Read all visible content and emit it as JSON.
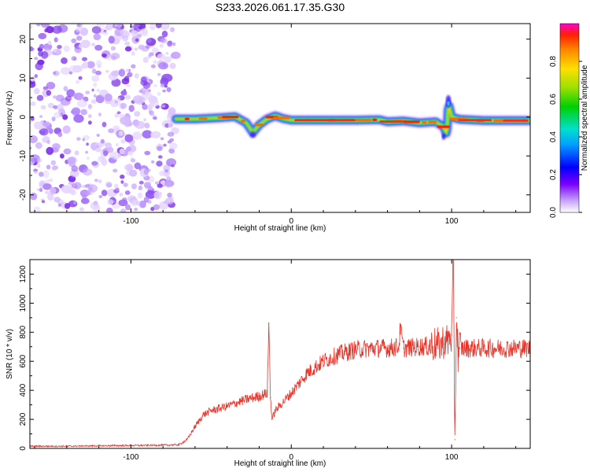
{
  "title": "S233.2026.061.17.35.G30",
  "colors": {
    "snr_line": "#e8362c",
    "noise_fill": "#8a2be2",
    "frame": "#000000"
  },
  "chart_data": [
    {
      "type": "heatmap",
      "title": "S233.2026.061.17.35.G30",
      "xlabel": "Height of straight line (km)",
      "ylabel": "Frequency (Hz)",
      "xlim": [
        -163,
        149
      ],
      "ylim": [
        -24.5,
        24
      ],
      "xticks": [
        -100,
        0,
        100
      ],
      "xtick_labels": [
        "-100",
        "0",
        "100"
      ],
      "yticks": [
        -20,
        -10,
        0,
        10,
        20
      ],
      "ytick_labels": [
        "-20",
        "-10",
        "0",
        "10",
        "20"
      ],
      "noise_region_x": [
        -163,
        -72
      ],
      "ridge": {
        "x": [
          -72,
          -60,
          -45,
          -35,
          -28,
          -24,
          -20,
          -15,
          -10,
          -5,
          0,
          20,
          40,
          55,
          60,
          70,
          80,
          90,
          95,
          97,
          98,
          100,
          105,
          120,
          140,
          149
        ],
        "freq": [
          -0.5,
          -0.5,
          -0.2,
          0.1,
          -1.5,
          -4.0,
          -2.0,
          -0.5,
          0.3,
          -0.4,
          -0.8,
          -0.8,
          -0.8,
          -0.7,
          -1.2,
          -1.0,
          -1.5,
          -1.2,
          -2.5,
          -4.5,
          3.5,
          0.0,
          -0.6,
          -0.9,
          -0.9,
          -0.9
        ]
      },
      "colorbar": {
        "label": "Normalized spectral amplitude",
        "range": [
          0.0,
          1.0
        ],
        "ticks": [
          0.0,
          0.2,
          0.4,
          0.6,
          0.8
        ],
        "tick_labels": [
          "0.0",
          "0.2",
          "0.4",
          "0.6",
          "0.8"
        ]
      }
    },
    {
      "type": "line",
      "xlabel": "Height of straight line (km)",
      "ylabel": "SNR (10 * v/v)",
      "xlim": [
        -163,
        149
      ],
      "ylim": [
        0,
        1300
      ],
      "xticks": [
        -100,
        0,
        100
      ],
      "xtick_labels": [
        "-100",
        "0",
        "100"
      ],
      "yticks": [
        0,
        200,
        400,
        600,
        800,
        1000,
        1200
      ],
      "ytick_labels": [
        "0",
        "200",
        "400",
        "600",
        "800",
        "1000",
        "1200"
      ],
      "x": [
        -163,
        -140,
        -120,
        -100,
        -80,
        -70,
        -65,
        -60,
        -55,
        -50,
        -40,
        -30,
        -20,
        -15,
        -14,
        -13,
        -12,
        -10,
        -5,
        0,
        5,
        10,
        20,
        30,
        40,
        50,
        60,
        67,
        68,
        70,
        80,
        90,
        95,
        100,
        101,
        102,
        103,
        104,
        105,
        110,
        120,
        130,
        140,
        149
      ],
      "values": [
        15,
        15,
        18,
        20,
        22,
        25,
        60,
        150,
        230,
        260,
        290,
        330,
        360,
        380,
        860,
        350,
        200,
        260,
        320,
        380,
        450,
        520,
        600,
        650,
        680,
        690,
        690,
        700,
        830,
        690,
        700,
        710,
        720,
        780,
        1300,
        60,
        900,
        650,
        690,
        690,
        690,
        690,
        690,
        690
      ]
    }
  ]
}
